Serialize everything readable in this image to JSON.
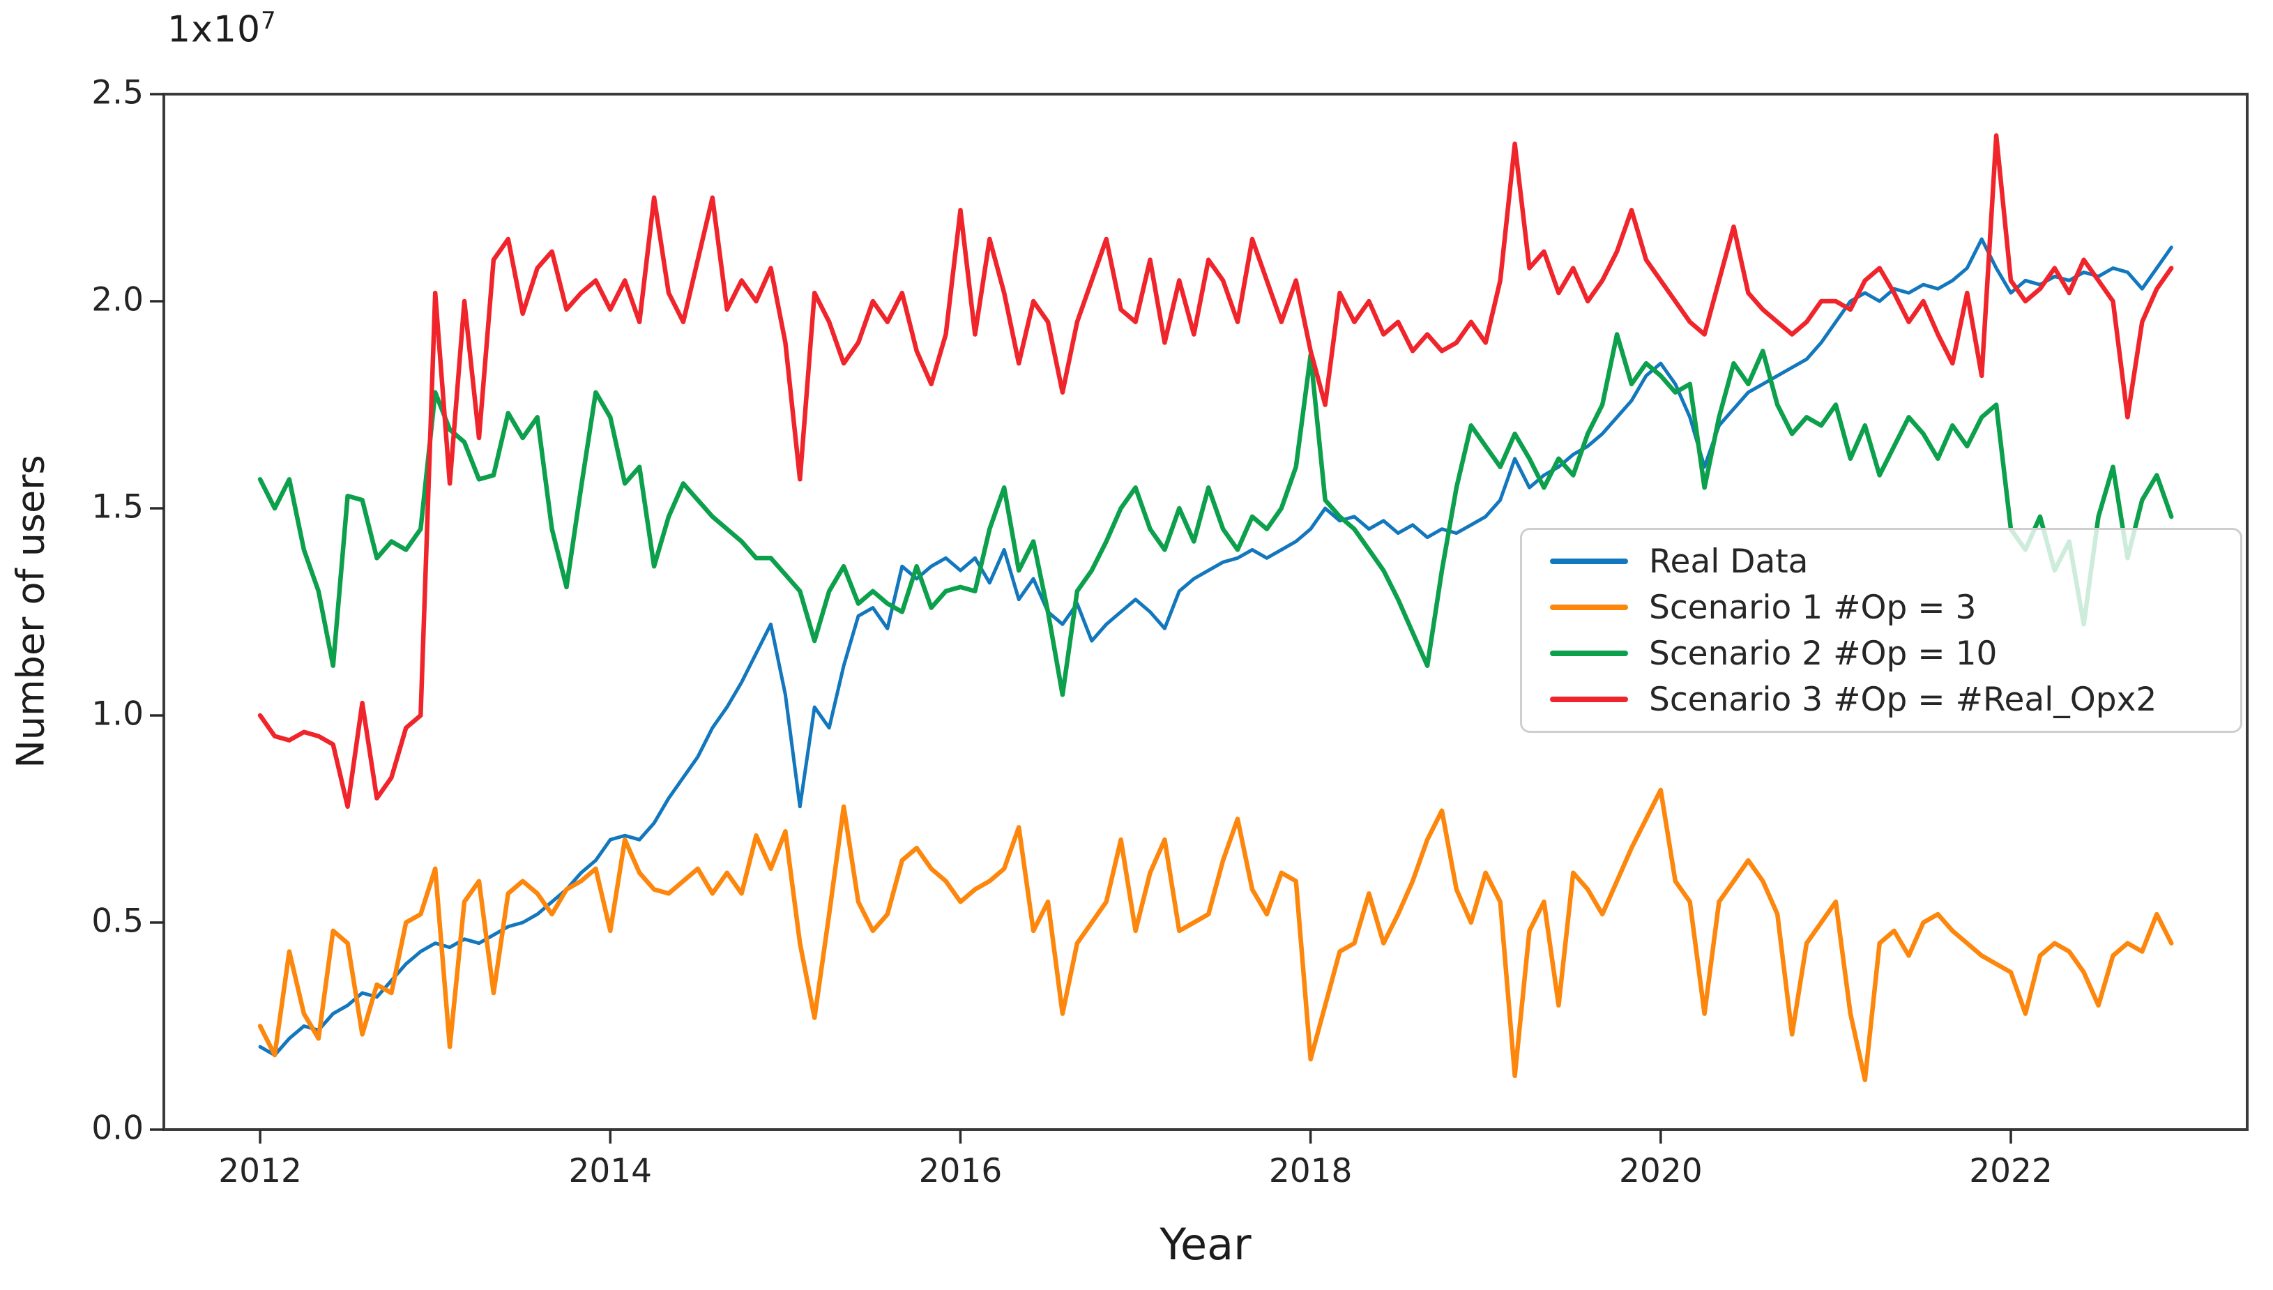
{
  "figure": {
    "offset_text": {
      "mantissa": "1x10",
      "exponent": "7"
    },
    "background_color": "#ffffff",
    "spine_color": "#3a3a3a",
    "tick_color": "#2b2b2b",
    "text_color": "#1c1c1c",
    "legend": {
      "position": "center right",
      "background": "rgba(255,255,255,0.8)",
      "border_color": "#cfcfcf"
    }
  },
  "chart_data": {
    "type": "line",
    "title": "",
    "xlabel": "Year",
    "ylabel": "Number of users",
    "y_scale_note": "values in units of 1x10^7 users",
    "xlim": [
      2011.45,
      2023.35
    ],
    "ylim": [
      0,
      2.5
    ],
    "x_ticks": [
      2012,
      2014,
      2016,
      2018,
      2020,
      2022
    ],
    "y_ticks": [
      "0.0",
      "0.5",
      "1.0",
      "1.5",
      "2.0",
      "2.5"
    ],
    "grid": false,
    "legend_position": "center right",
    "x_start": 2012.0,
    "x_frequency": "monthly",
    "series": [
      {
        "name": "Real Data",
        "color": "#1277bd",
        "values": [
          0.2,
          0.18,
          0.22,
          0.25,
          0.24,
          0.28,
          0.3,
          0.33,
          0.32,
          0.36,
          0.4,
          0.43,
          0.45,
          0.44,
          0.46,
          0.45,
          0.47,
          0.49,
          0.5,
          0.52,
          0.55,
          0.58,
          0.62,
          0.65,
          0.7,
          0.71,
          0.7,
          0.74,
          0.8,
          0.85,
          0.9,
          0.97,
          1.02,
          1.08,
          1.15,
          1.22,
          1.05,
          0.78,
          1.02,
          0.97,
          1.12,
          1.24,
          1.26,
          1.21,
          1.36,
          1.33,
          1.36,
          1.38,
          1.35,
          1.38,
          1.32,
          1.4,
          1.28,
          1.33,
          1.25,
          1.22,
          1.27,
          1.18,
          1.22,
          1.25,
          1.28,
          1.25,
          1.21,
          1.3,
          1.33,
          1.35,
          1.37,
          1.38,
          1.4,
          1.38,
          1.4,
          1.42,
          1.45,
          1.5,
          1.47,
          1.48,
          1.45,
          1.47,
          1.44,
          1.46,
          1.43,
          1.45,
          1.44,
          1.46,
          1.48,
          1.52,
          1.62,
          1.55,
          1.58,
          1.6,
          1.63,
          1.65,
          1.68,
          1.72,
          1.76,
          1.82,
          1.85,
          1.8,
          1.72,
          1.6,
          1.7,
          1.74,
          1.78,
          1.8,
          1.82,
          1.84,
          1.86,
          1.9,
          1.95,
          2.0,
          2.02,
          2.0,
          2.03,
          2.02,
          2.04,
          2.03,
          2.05,
          2.08,
          2.15,
          2.08,
          2.02,
          2.05,
          2.04,
          2.06,
          2.05,
          2.07,
          2.06,
          2.08,
          2.07,
          2.03,
          2.08,
          2.13
        ]
      },
      {
        "name": "Scenario 1 #Op = 3",
        "color": "#fd860d",
        "values": [
          0.25,
          0.18,
          0.43,
          0.28,
          0.22,
          0.48,
          0.45,
          0.23,
          0.35,
          0.33,
          0.5,
          0.52,
          0.63,
          0.2,
          0.55,
          0.6,
          0.33,
          0.57,
          0.6,
          0.57,
          0.52,
          0.58,
          0.6,
          0.63,
          0.48,
          0.7,
          0.62,
          0.58,
          0.57,
          0.6,
          0.63,
          0.57,
          0.62,
          0.57,
          0.71,
          0.63,
          0.72,
          0.45,
          0.27,
          0.52,
          0.78,
          0.55,
          0.48,
          0.52,
          0.65,
          0.68,
          0.63,
          0.6,
          0.55,
          0.58,
          0.6,
          0.63,
          0.73,
          0.48,
          0.55,
          0.28,
          0.45,
          0.5,
          0.55,
          0.7,
          0.48,
          0.62,
          0.7,
          0.48,
          0.5,
          0.52,
          0.65,
          0.75,
          0.58,
          0.52,
          0.62,
          0.6,
          0.17,
          0.3,
          0.43,
          0.45,
          0.57,
          0.45,
          0.52,
          0.6,
          0.7,
          0.77,
          0.58,
          0.5,
          0.62,
          0.55,
          0.13,
          0.48,
          0.55,
          0.3,
          0.62,
          0.58,
          0.52,
          0.6,
          0.68,
          0.75,
          0.82,
          0.6,
          0.55,
          0.28,
          0.55,
          0.6,
          0.65,
          0.6,
          0.52,
          0.23,
          0.45,
          0.5,
          0.55,
          0.28,
          0.12,
          0.45,
          0.48,
          0.42,
          0.5,
          0.52,
          0.48,
          0.45,
          0.42,
          0.4,
          0.38,
          0.28,
          0.42,
          0.45,
          0.43,
          0.38,
          0.3,
          0.42,
          0.45,
          0.43,
          0.52,
          0.45
        ]
      },
      {
        "name": "Scenario 2 #Op = 10",
        "color": "#0ca04c",
        "values": [
          1.57,
          1.5,
          1.57,
          1.4,
          1.3,
          1.12,
          1.53,
          1.52,
          1.38,
          1.42,
          1.4,
          1.45,
          1.78,
          1.69,
          1.66,
          1.57,
          1.58,
          1.73,
          1.67,
          1.72,
          1.45,
          1.31,
          1.55,
          1.78,
          1.72,
          1.56,
          1.6,
          1.36,
          1.48,
          1.56,
          1.52,
          1.48,
          1.45,
          1.42,
          1.38,
          1.38,
          1.34,
          1.3,
          1.18,
          1.3,
          1.36,
          1.27,
          1.3,
          1.27,
          1.25,
          1.36,
          1.26,
          1.3,
          1.31,
          1.3,
          1.45,
          1.55,
          1.35,
          1.42,
          1.25,
          1.05,
          1.3,
          1.35,
          1.42,
          1.5,
          1.55,
          1.45,
          1.4,
          1.5,
          1.42,
          1.55,
          1.45,
          1.4,
          1.48,
          1.45,
          1.5,
          1.6,
          1.87,
          1.52,
          1.48,
          1.45,
          1.4,
          1.35,
          1.28,
          1.2,
          1.12,
          1.35,
          1.55,
          1.7,
          1.65,
          1.6,
          1.68,
          1.62,
          1.55,
          1.62,
          1.58,
          1.68,
          1.75,
          1.92,
          1.8,
          1.85,
          1.82,
          1.78,
          1.8,
          1.55,
          1.72,
          1.85,
          1.8,
          1.88,
          1.75,
          1.68,
          1.72,
          1.7,
          1.75,
          1.62,
          1.7,
          1.58,
          1.65,
          1.72,
          1.68,
          1.62,
          1.7,
          1.65,
          1.72,
          1.75,
          1.45,
          1.4,
          1.48,
          1.35,
          1.42,
          1.22,
          1.48,
          1.6,
          1.38,
          1.52,
          1.58,
          1.48
        ]
      },
      {
        "name": "Scenario 3 #Op = #Real_Opx2",
        "color": "#f0252b",
        "values": [
          1.0,
          0.95,
          0.94,
          0.96,
          0.95,
          0.93,
          0.78,
          1.03,
          0.8,
          0.85,
          0.97,
          1.0,
          2.02,
          1.56,
          2.0,
          1.67,
          2.1,
          2.15,
          1.97,
          2.08,
          2.12,
          1.98,
          2.02,
          2.05,
          1.98,
          2.05,
          1.95,
          2.25,
          2.02,
          1.95,
          2.1,
          2.25,
          1.98,
          2.05,
          2.0,
          2.08,
          1.9,
          1.57,
          2.02,
          1.95,
          1.85,
          1.9,
          2.0,
          1.95,
          2.02,
          1.88,
          1.8,
          1.92,
          2.22,
          1.92,
          2.15,
          2.02,
          1.85,
          2.0,
          1.95,
          1.78,
          1.95,
          2.05,
          2.15,
          1.98,
          1.95,
          2.1,
          1.9,
          2.05,
          1.92,
          2.1,
          2.05,
          1.95,
          2.15,
          2.05,
          1.95,
          2.05,
          1.88,
          1.75,
          2.02,
          1.95,
          2.0,
          1.92,
          1.95,
          1.88,
          1.92,
          1.88,
          1.9,
          1.95,
          1.9,
          2.05,
          2.38,
          2.08,
          2.12,
          2.02,
          2.08,
          2.0,
          2.05,
          2.12,
          2.22,
          2.1,
          2.05,
          2.0,
          1.95,
          1.92,
          2.05,
          2.18,
          2.02,
          1.98,
          1.95,
          1.92,
          1.95,
          2.0,
          2.0,
          1.98,
          2.05,
          2.08,
          2.02,
          1.95,
          2.0,
          1.92,
          1.85,
          2.02,
          1.82,
          2.4,
          2.05,
          2.0,
          2.03,
          2.08,
          2.02,
          2.1,
          2.05,
          2.0,
          1.72,
          1.95,
          2.03,
          2.08
        ]
      }
    ]
  }
}
